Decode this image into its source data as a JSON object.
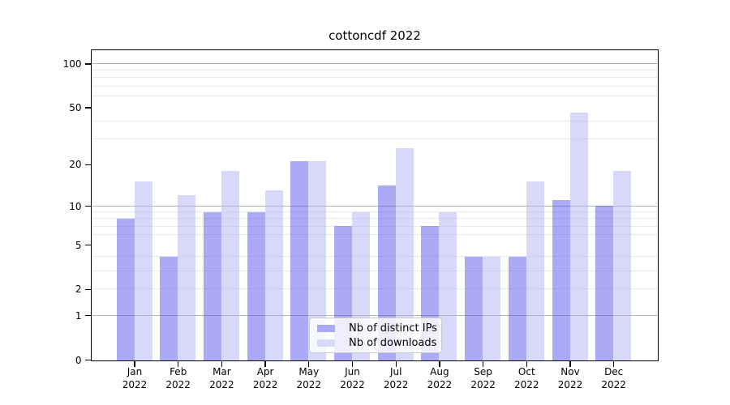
{
  "title": "cottoncdf 2022",
  "chart_data": {
    "type": "bar",
    "title": "cottoncdf 2022",
    "yscale": "log1p",
    "ylim": [
      0,
      124
    ],
    "grid": "on",
    "legend_position": "lower center",
    "categories": [
      "Jan 2022",
      "Feb 2022",
      "Mar 2022",
      "Apr 2022",
      "May 2022",
      "Jun 2022",
      "Jul 2022",
      "Aug 2022",
      "Sep 2022",
      "Oct 2022",
      "Nov 2022",
      "Dec 2022"
    ],
    "months": [
      "Jan",
      "Feb",
      "Mar",
      "Apr",
      "May",
      "Jun",
      "Jul",
      "Aug",
      "Sep",
      "Oct",
      "Nov",
      "Dec"
    ],
    "year": "2022",
    "y_tick_values": [
      0,
      1,
      2,
      5,
      10,
      20,
      50,
      100
    ],
    "y_tick_labels": [
      "0",
      "1",
      "2",
      "5",
      "10",
      "20",
      "50",
      "100"
    ],
    "grid_decade_lines": [
      1,
      10,
      100
    ],
    "grid_minor_lines": [
      2,
      3,
      4,
      6,
      7,
      8,
      9,
      30,
      40,
      60,
      70,
      80,
      90
    ],
    "grid_decade_color": "#b3b3b3",
    "grid_minor_color": "#e9e9e9",
    "series": [
      {
        "name": "Nb of distinct IPs",
        "color": "#aaaaf6",
        "fill_rgba": "rgba(86,86,237,0.5)",
        "values": [
          8,
          4,
          9,
          9,
          21,
          7,
          14,
          7,
          4,
          4,
          11,
          10
        ]
      },
      {
        "name": "Nb of downloads",
        "color": "#d8d8fa",
        "fill_rgba": "rgba(177,177,246,0.5)",
        "values": [
          15,
          12,
          18,
          13,
          21,
          9,
          26,
          9,
          4,
          15,
          46,
          18
        ]
      }
    ]
  }
}
